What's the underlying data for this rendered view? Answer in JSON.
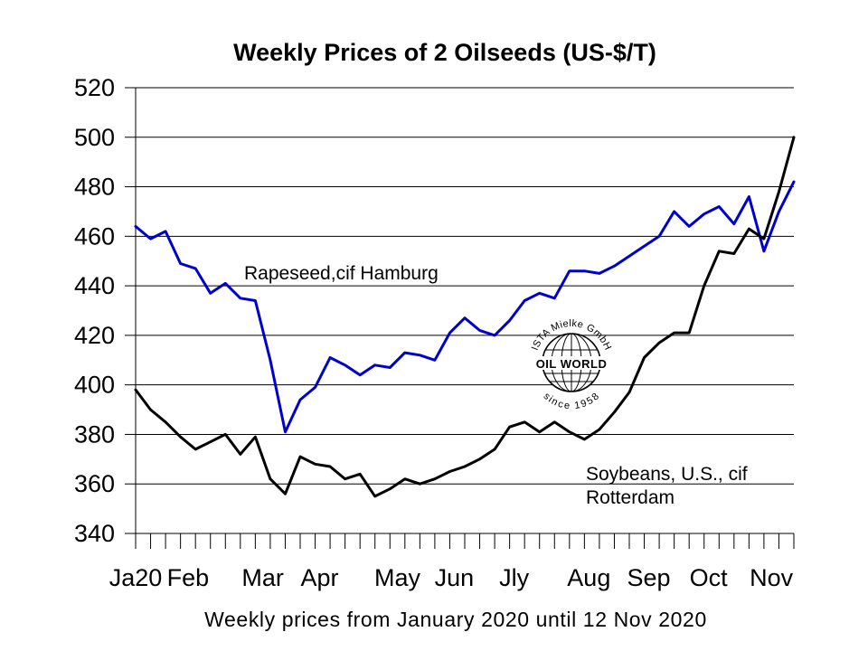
{
  "chart_data": {
    "type": "line",
    "title": "Weekly Prices of 2 Oilseeds (US-$/T)",
    "xlabel": "Weekly prices from January 2020 until 12 Nov 2020",
    "ylabel": "",
    "ylim": [
      340,
      520
    ],
    "yticks": [
      340,
      360,
      380,
      400,
      420,
      440,
      460,
      480,
      500,
      520
    ],
    "grid": true,
    "x_month_labels": [
      {
        "label": "Ja20",
        "week": 0
      },
      {
        "label": "Feb",
        "week": 3.5
      },
      {
        "label": "Mar",
        "week": 8.5
      },
      {
        "label": "Apr",
        "week": 12.3
      },
      {
        "label": "May",
        "week": 17.5
      },
      {
        "label": "Jun",
        "week": 21.3
      },
      {
        "label": "Jly",
        "week": 25.3
      },
      {
        "label": "Aug",
        "week": 30.3
      },
      {
        "label": "Sep",
        "week": 34.3
      },
      {
        "label": "Oct",
        "week": 38.3
      },
      {
        "label": "Nov",
        "week": 42.5
      }
    ],
    "series": [
      {
        "name": "Rapeseed,cif Hamburg",
        "color": "#0000cc",
        "values": [
          464,
          459,
          462,
          449,
          447,
          437,
          441,
          435,
          434,
          410,
          381,
          394,
          399,
          411,
          408,
          404,
          408,
          407,
          413,
          412,
          410,
          421,
          427,
          422,
          420,
          426,
          434,
          437,
          435,
          446,
          446,
          445,
          448,
          452,
          456,
          460,
          470,
          464,
          469,
          472,
          465,
          476,
          454,
          470,
          482
        ]
      },
      {
        "name": "Soybeans, U.S., cif Rotterdam",
        "color": "#000000",
        "values": [
          398,
          390,
          385,
          379,
          374,
          377,
          380,
          372,
          379,
          362,
          356,
          371,
          368,
          367,
          362,
          364,
          355,
          358,
          362,
          360,
          362,
          365,
          367,
          370,
          374,
          383,
          385,
          381,
          385,
          381,
          378,
          382,
          389,
          397,
          411,
          417,
          421,
          421,
          440,
          454,
          453,
          463,
          459,
          478,
          500
        ]
      }
    ]
  },
  "series_labels": {
    "rapeseed": "Rapeseed,cif Hamburg",
    "soybeans_line1": "Soybeans, U.S., cif",
    "soybeans_line2": "Rotterdam"
  },
  "logo": {
    "top_text": "ISTA Mielke GmbH",
    "center_text": "OIL WORLD",
    "bottom_text": "since 1958"
  }
}
